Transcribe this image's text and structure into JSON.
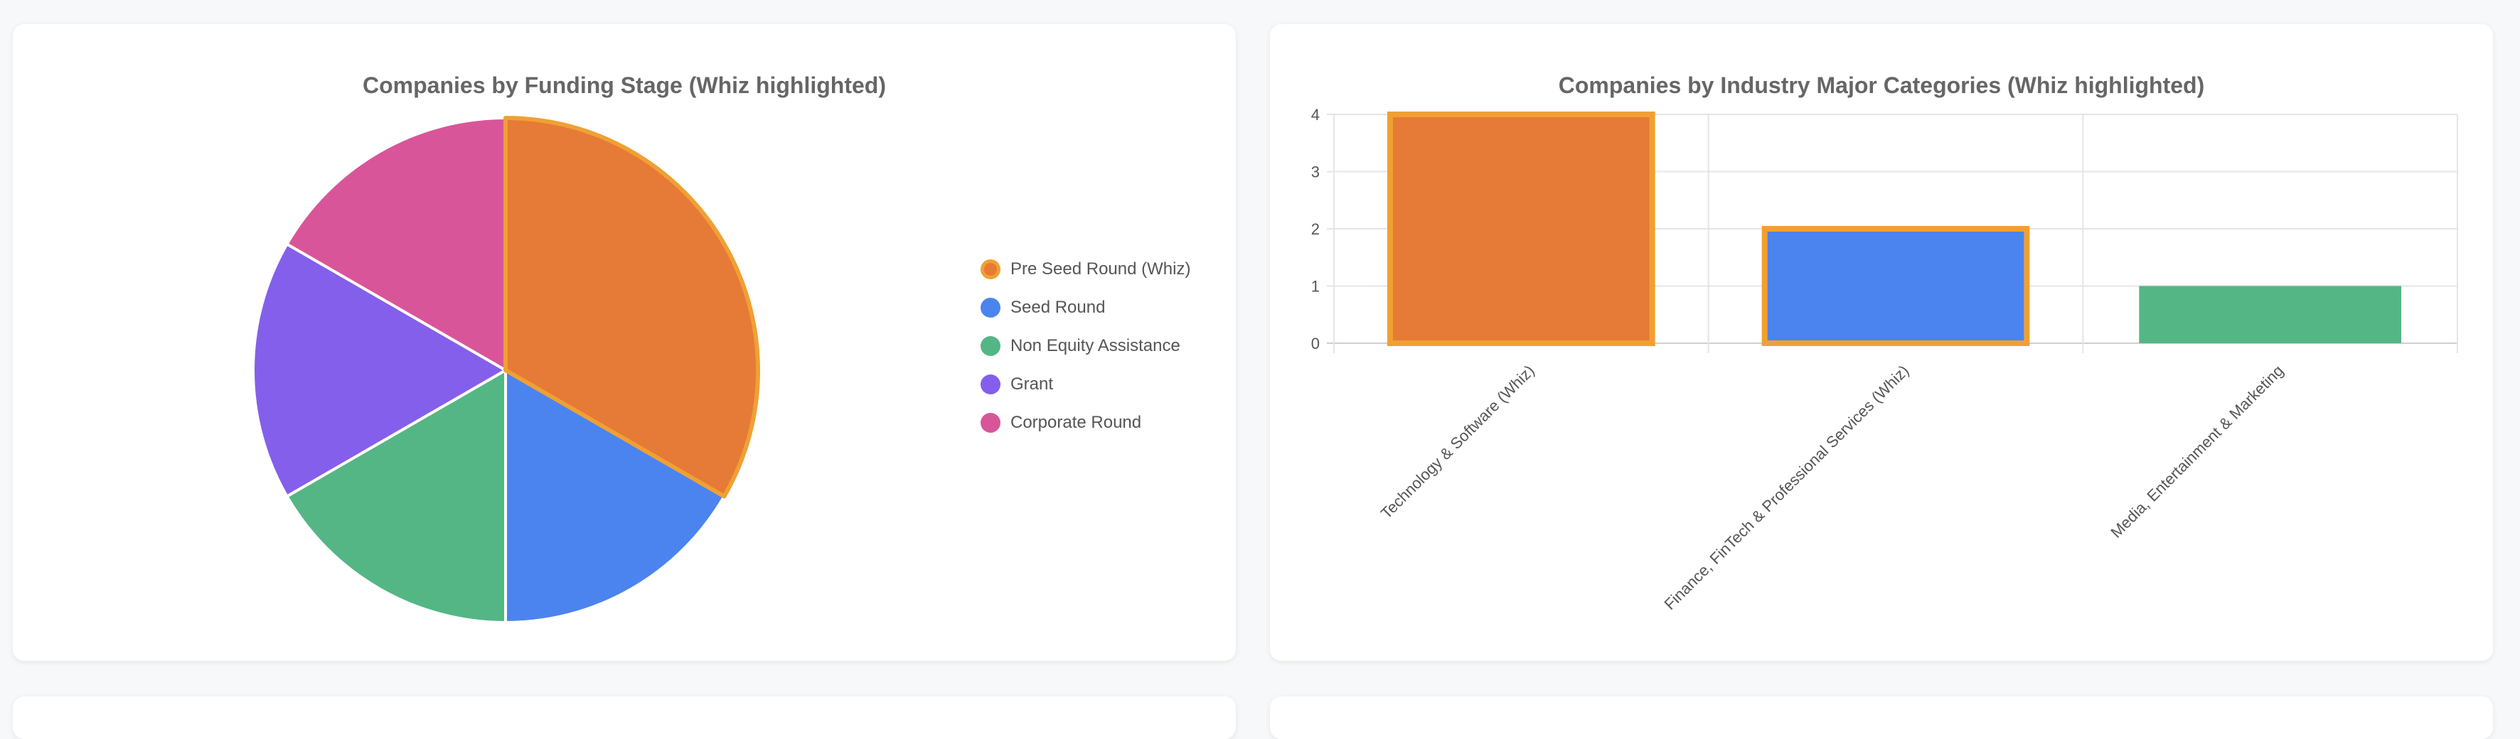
{
  "charts": [
    {
      "title": "Companies by Funding Stage (Whiz highlighted)",
      "chart_data": {
        "type": "pie",
        "categories": [
          "Pre Seed Round (Whiz)",
          "Seed Round",
          "Non Equity Assistance",
          "Grant",
          "Corporate Round"
        ],
        "values": [
          2,
          1,
          1,
          1,
          1
        ],
        "colors": [
          "#e67a37",
          "#4b84ee",
          "#54b685",
          "#845fec",
          "#d9559a"
        ],
        "highlight_index": 0,
        "highlight_color": "#f0a033",
        "legend_position": "right"
      }
    },
    {
      "title": "Companies by Industry Major Categories (Whiz highlighted)",
      "chart_data": {
        "type": "bar",
        "categories": [
          "Technology & Software (Whiz)",
          "Finance, FinTech & Professional Services (Whiz)",
          "Media, Entertainment & Marketing"
        ],
        "values": [
          4,
          2,
          1
        ],
        "colors": [
          "#e67a37",
          "#4b84ee",
          "#54b685"
        ],
        "highlighted": [
          true,
          true,
          false
        ],
        "highlight_color": "#f0a033",
        "ylim": [
          0,
          4
        ],
        "yticks": [
          "0",
          "1",
          "2",
          "3",
          "4"
        ],
        "grid": true
      }
    }
  ]
}
